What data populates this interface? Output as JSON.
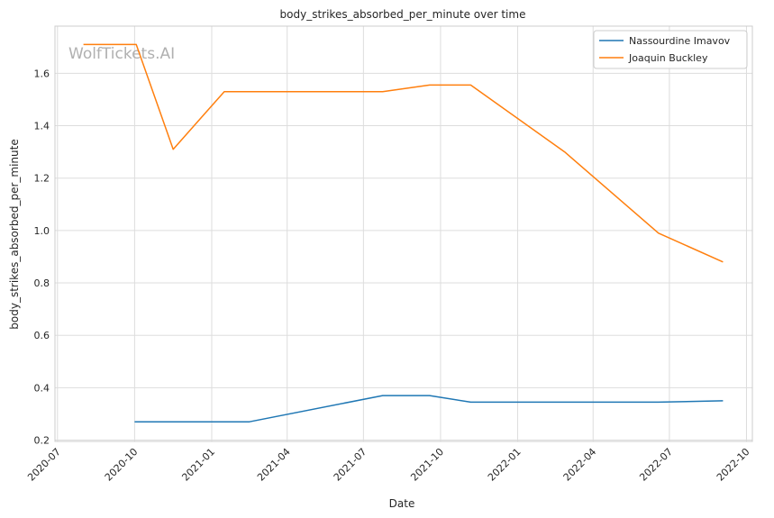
{
  "chart_data": {
    "type": "line",
    "title": "body_strikes_absorbed_per_minute over time",
    "xlabel": "Date",
    "ylabel": "body_strikes_absorbed_per_minute",
    "watermark": "WolfTickets.AI",
    "x_axis_type": "date",
    "xlim": [
      "2020-06-28",
      "2022-10-08"
    ],
    "ylim": [
      0.195,
      1.78
    ],
    "x_ticks": [
      "2020-07",
      "2020-10",
      "2021-01",
      "2021-04",
      "2021-07",
      "2021-10",
      "2022-01",
      "2022-04",
      "2022-07",
      "2022-10"
    ],
    "x_tick_dates": [
      "2020-07-01",
      "2020-10-01",
      "2021-01-01",
      "2021-04-01",
      "2021-07-01",
      "2021-10-01",
      "2022-01-01",
      "2022-04-01",
      "2022-07-01",
      "2022-10-01"
    ],
    "y_ticks": [
      "0.2",
      "0.4",
      "0.6",
      "0.8",
      "1.0",
      "1.2",
      "1.4",
      "1.6"
    ],
    "grid": true,
    "legend_position": "top-right",
    "series": [
      {
        "name": "Nassourdine Imavov",
        "color": "#1f77b4",
        "points": [
          {
            "x": "2020-10-01",
            "y": 0.27
          },
          {
            "x": "2021-02-15",
            "y": 0.27
          },
          {
            "x": "2021-07-24",
            "y": 0.37
          },
          {
            "x": "2021-09-18",
            "y": 0.37
          },
          {
            "x": "2021-11-06",
            "y": 0.345
          },
          {
            "x": "2022-06-18",
            "y": 0.345
          },
          {
            "x": "2022-09-03",
            "y": 0.35
          }
        ]
      },
      {
        "name": "Joaquin Buckley",
        "color": "#ff7f0e",
        "points": [
          {
            "x": "2020-08-01",
            "y": 1.71
          },
          {
            "x": "2020-10-03",
            "y": 1.71
          },
          {
            "x": "2020-11-16",
            "y": 1.31
          },
          {
            "x": "2021-01-16",
            "y": 1.53
          },
          {
            "x": "2021-07-24",
            "y": 1.53
          },
          {
            "x": "2021-09-18",
            "y": 1.555
          },
          {
            "x": "2021-11-06",
            "y": 1.555
          },
          {
            "x": "2022-02-26",
            "y": 1.3
          },
          {
            "x": "2022-06-18",
            "y": 0.99
          },
          {
            "x": "2022-09-03",
            "y": 0.88
          }
        ]
      }
    ]
  }
}
